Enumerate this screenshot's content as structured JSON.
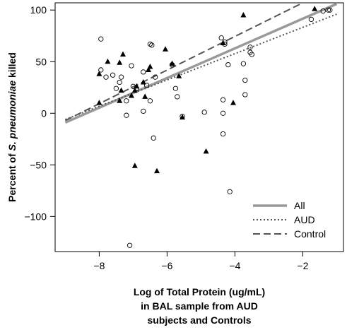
{
  "chart_data": {
    "type": "scatter",
    "xlabel": [
      "Log of Total Protein (ug/mL)",
      "in BAL sample from AUD",
      "subjects and Controls"
    ],
    "ylabel_prefix": "Percent of ",
    "ylabel_italic": "S. pneumoniae",
    "ylabel_suffix": " killed",
    "xlim": [
      -9.3,
      -0.8
    ],
    "ylim": [
      -134,
      107
    ],
    "x_ticks": [
      {
        "value": -8,
        "label": "−8"
      },
      {
        "value": -6,
        "label": "−6"
      },
      {
        "value": -4,
        "label": "−4"
      },
      {
        "value": -2,
        "label": "−2"
      }
    ],
    "y_ticks": [
      {
        "value": 100,
        "label": "100"
      },
      {
        "value": 50,
        "label": "50"
      },
      {
        "value": 0,
        "label": "0"
      },
      {
        "value": -50,
        "label": "−50"
      },
      {
        "value": -100,
        "label": "−100"
      }
    ],
    "grid": false,
    "legend": {
      "position": "bottom-right",
      "entries": [
        {
          "name": "All",
          "style": "solid",
          "color": "#999999"
        },
        {
          "name": "AUD",
          "style": "dotted",
          "color": "#555555"
        },
        {
          "name": "Control",
          "style": "dashed",
          "color": "#555555"
        }
      ]
    },
    "series": [
      {
        "name": "AUD",
        "marker": "open-circle",
        "points": [
          [
            -7.95,
            72
          ],
          [
            -7.95,
            42
          ],
          [
            -7.8,
            35
          ],
          [
            -7.6,
            37
          ],
          [
            -7.5,
            24
          ],
          [
            -7.4,
            30
          ],
          [
            -7.35,
            35
          ],
          [
            -7.2,
            12
          ],
          [
            -7.2,
            -2
          ],
          [
            -7.05,
            46
          ],
          [
            -7.0,
            26
          ],
          [
            -6.9,
            24
          ],
          [
            -6.5,
            67
          ],
          [
            -6.45,
            66
          ],
          [
            -6.7,
            40
          ],
          [
            -6.6,
            27
          ],
          [
            -6.7,
            2
          ],
          [
            -6.5,
            12
          ],
          [
            -6.4,
            -24
          ],
          [
            -6.35,
            35
          ],
          [
            -5.85,
            47
          ],
          [
            -5.75,
            24
          ],
          [
            -5.7,
            16
          ],
          [
            -5.55,
            -3
          ],
          [
            -4.9,
            1
          ],
          [
            -4.4,
            73
          ],
          [
            -4.3,
            67
          ],
          [
            -4.3,
            69
          ],
          [
            -4.2,
            47
          ],
          [
            -4.35,
            13
          ],
          [
            -4.35,
            0
          ],
          [
            -4.35,
            -20
          ],
          [
            -4.15,
            -76
          ],
          [
            -3.75,
            48
          ],
          [
            -3.7,
            32
          ],
          [
            -3.7,
            18
          ],
          [
            -3.55,
            64
          ],
          [
            -3.55,
            59
          ],
          [
            -3.5,
            57
          ],
          [
            -1.75,
            91
          ],
          [
            -1.4,
            99
          ],
          [
            -1.25,
            100
          ],
          [
            -1.2,
            100
          ],
          [
            -7.1,
            -128
          ]
        ]
      },
      {
        "name": "Control",
        "marker": "filled-triangle",
        "points": [
          [
            -8.0,
            38
          ],
          [
            -8.0,
            10
          ],
          [
            -7.75,
            50
          ],
          [
            -7.4,
            49
          ],
          [
            -7.4,
            12
          ],
          [
            -7.3,
            57
          ],
          [
            -7.35,
            22
          ],
          [
            -7.05,
            17
          ],
          [
            -6.95,
            22
          ],
          [
            -6.95,
            -51
          ],
          [
            -6.9,
            26
          ],
          [
            -6.7,
            30
          ],
          [
            -6.65,
            16
          ],
          [
            -6.55,
            42
          ],
          [
            -6.5,
            45
          ],
          [
            -6.3,
            -56
          ],
          [
            -6.05,
            62
          ],
          [
            -5.85,
            48
          ],
          [
            -5.65,
            36
          ],
          [
            -5.55,
            -4
          ],
          [
            -4.85,
            -37
          ],
          [
            -4.35,
            68
          ],
          [
            -4.05,
            10
          ],
          [
            -3.75,
            95
          ],
          [
            -1.65,
            101
          ]
        ]
      }
    ],
    "fit_lines": [
      {
        "name": "All",
        "style": "solid",
        "color": "#999999",
        "from": [
          -9.0,
          -9
        ],
        "to": [
          -1.0,
          106
        ]
      },
      {
        "name": "AUD",
        "style": "dotted",
        "color": "#555555",
        "from": [
          -9.0,
          -6
        ],
        "to": [
          -1.0,
          96
        ]
      },
      {
        "name": "Control",
        "style": "dashed",
        "color": "#555555",
        "from": [
          -9.0,
          -7
        ],
        "to": [
          -2.0,
          107
        ]
      }
    ]
  }
}
